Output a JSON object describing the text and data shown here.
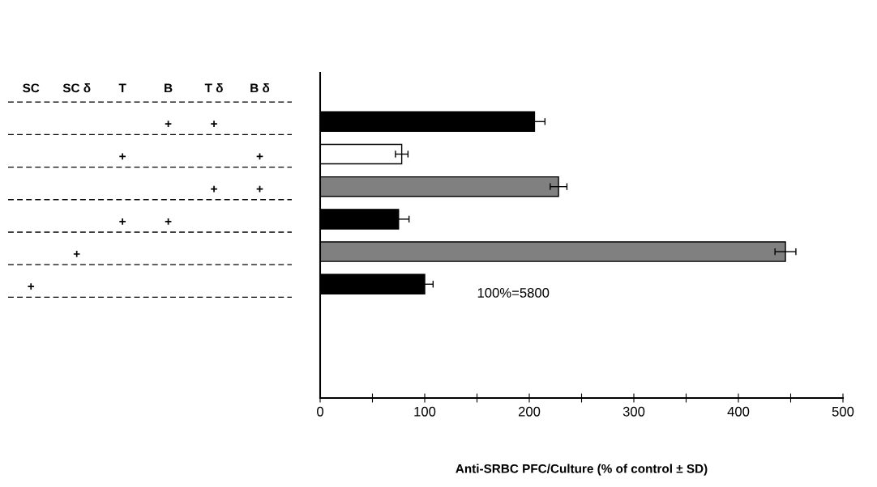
{
  "chart_data": [
    {
      "type": "other",
      "categories": [
        "SC",
        "SC δ",
        "T",
        "B",
        "T δ",
        "B δ"
      ],
      "cell_labels": [
        [
          null,
          null,
          null,
          null,
          null,
          null
        ],
        [
          null,
          null,
          null,
          "+",
          "+",
          null
        ],
        [
          null,
          null,
          "+",
          null,
          null,
          "+"
        ],
        [
          null,
          null,
          null,
          null,
          "+",
          "+"
        ],
        [
          null,
          null,
          "+",
          "+",
          null,
          null
        ],
        [
          null,
          "+",
          null,
          null,
          null,
          null
        ],
        [
          "+",
          null,
          null,
          null,
          null,
          null
        ],
        [
          null,
          null,
          null,
          null,
          null,
          null
        ],
        [
          null,
          null,
          null,
          null,
          null,
          null
        ],
        [
          null,
          null,
          null,
          null,
          null,
          null
        ]
      ]
    },
    {
      "type": "bar",
      "orientation": "horizontal",
      "categories": [
        null,
        null,
        null,
        null,
        null,
        null,
        null,
        null,
        null,
        null
      ],
      "values": [
        null,
        205,
        78,
        228,
        75,
        445,
        100,
        null,
        null,
        null
      ],
      "errors": [
        null,
        10,
        6,
        8,
        10,
        10,
        8,
        null,
        null,
        null
      ],
      "colors": [
        "#ffffff",
        "#000000",
        "#ffffff",
        "#808080",
        "#000000",
        "#808080",
        "#000000",
        "#ffffff",
        "#ffffff",
        "#ffffff"
      ],
      "xlim": [
        0,
        500
      ],
      "xticks": [
        0,
        {
          "value": 50,
          "label": null
        },
        100,
        {
          "value": 150,
          "label": null
        },
        200,
        {
          "value": 250,
          "label": null
        },
        300,
        {
          "value": 350,
          "label": null
        },
        400,
        {
          "value": 450,
          "label": null
        },
        500
      ],
      "xlabel": "Anti-SRBC PFC/Culture (% of control ± SD)",
      "annotations": [
        "100%=5800"
      ]
    }
  ]
}
